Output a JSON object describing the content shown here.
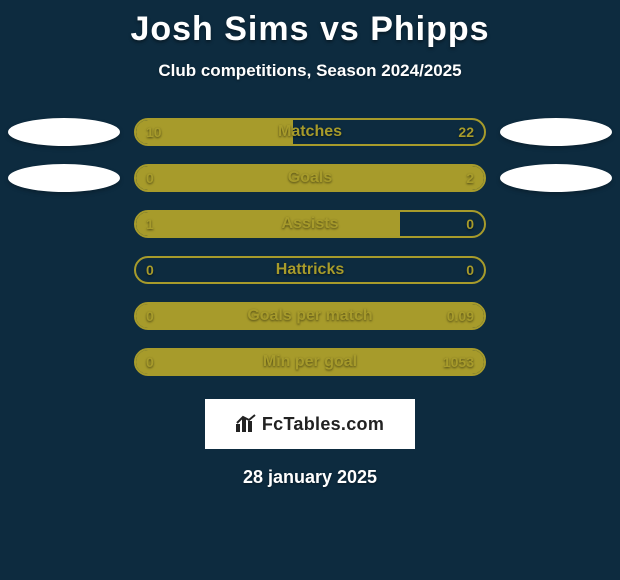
{
  "title": "Josh Sims vs Phipps",
  "subtitle": "Club competitions, Season 2024/2025",
  "colors": {
    "background": "#0d2b3f",
    "bar_fill": "#a79b2b",
    "bar_border": "#a79b2b",
    "text": "#ffffff",
    "logo_bg": "#ffffff",
    "logo_text": "#222222"
  },
  "typography": {
    "title_fontsize": 34,
    "subtitle_fontsize": 17,
    "statlabel_fontsize": 16,
    "value_fontsize": 14,
    "date_fontsize": 18
  },
  "stats": [
    {
      "label": "Matches",
      "left_val": "10",
      "right_val": "22",
      "left_pct": 45,
      "right_pct": 0,
      "show_badges": true
    },
    {
      "label": "Goals",
      "left_val": "0",
      "right_val": "2",
      "left_pct": 18,
      "right_pct": 82,
      "show_badges": true
    },
    {
      "label": "Assists",
      "left_val": "1",
      "right_val": "0",
      "left_pct": 76,
      "right_pct": 0,
      "show_badges": false
    },
    {
      "label": "Hattricks",
      "left_val": "0",
      "right_val": "0",
      "left_pct": 0,
      "right_pct": 0,
      "show_badges": false
    },
    {
      "label": "Goals per match",
      "left_val": "0",
      "right_val": "0.09",
      "left_pct": 0,
      "right_pct": 100,
      "show_badges": false
    },
    {
      "label": "Min per goal",
      "left_val": "0",
      "right_val": "1053",
      "left_pct": 0,
      "right_pct": 100,
      "show_badges": false
    }
  ],
  "logo_text": "FcTables.com",
  "date": "28 january 2025"
}
